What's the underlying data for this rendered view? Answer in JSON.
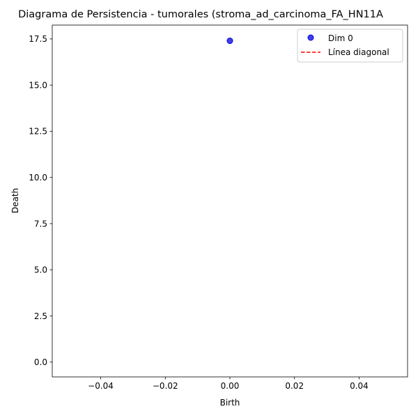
{
  "chart_data": {
    "type": "scatter",
    "title": "Diagrama de Persistencia - tumorales (stroma_ad_carcinoma_FA_HN11A",
    "xlabel": "Birth",
    "ylabel": "Death",
    "xlim": [
      -0.055,
      0.055
    ],
    "ylim": [
      -0.8,
      18.25
    ],
    "xticks": [
      -0.04,
      -0.02,
      0.0,
      0.02,
      0.04
    ],
    "xtick_labels": [
      "−0.04",
      "−0.02",
      "0.00",
      "0.02",
      "0.04"
    ],
    "yticks": [
      0.0,
      2.5,
      5.0,
      7.5,
      10.0,
      12.5,
      15.0,
      17.5
    ],
    "ytick_labels": [
      "0.0",
      "2.5",
      "5.0",
      "7.5",
      "10.0",
      "12.5",
      "15.0",
      "17.5"
    ],
    "grid": false,
    "legend_position": "top-right",
    "series": [
      {
        "name": "Dim 0",
        "kind": "scatter",
        "color": "#0000dd",
        "points": [
          {
            "x": 0.0,
            "y": 17.4
          }
        ]
      },
      {
        "name": "Línea diagonal",
        "kind": "line",
        "style": "dashed",
        "color": "#ff0000",
        "points": []
      }
    ]
  }
}
